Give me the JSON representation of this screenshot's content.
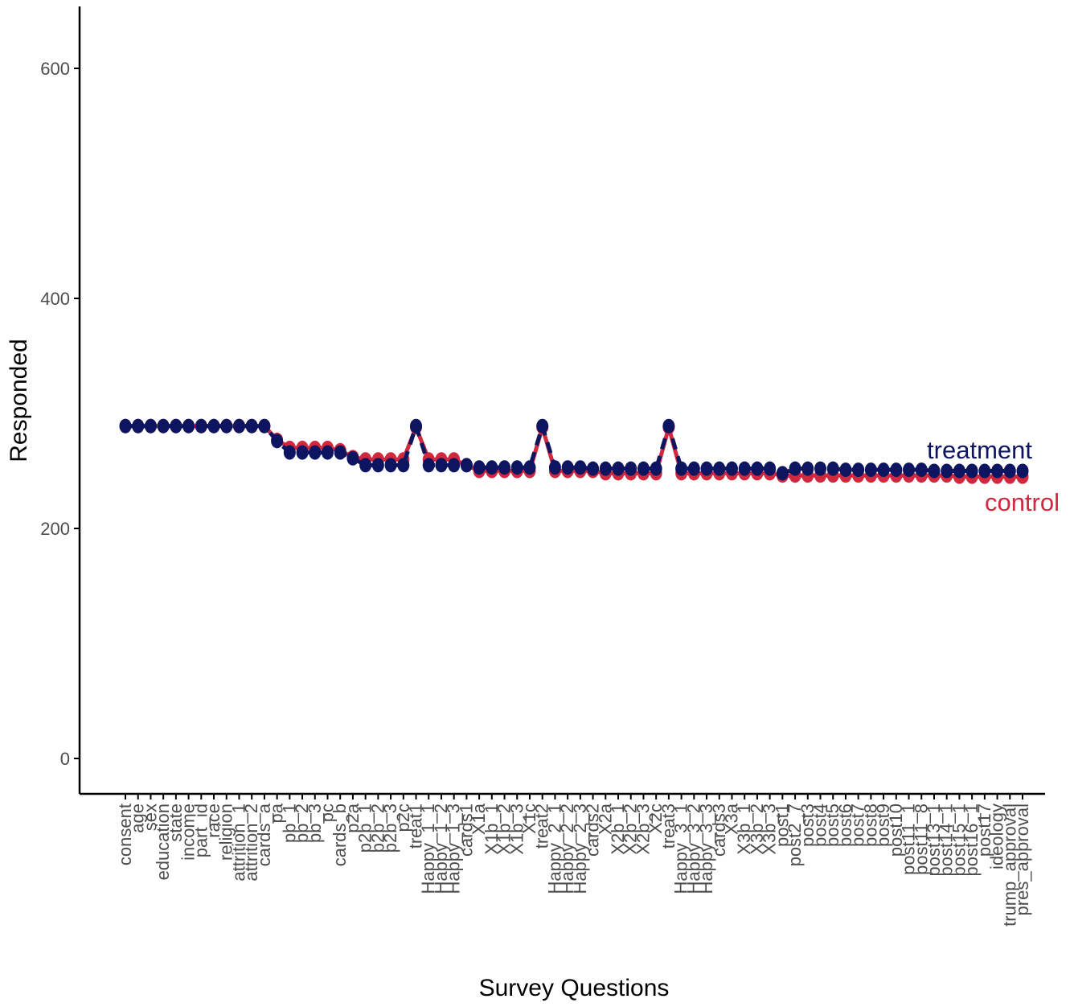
{
  "chart_data": {
    "type": "line",
    "xlabel": "Survey Questions",
    "ylabel": "Responded",
    "ylim": [
      -30,
      655
    ],
    "yticks": [
      0,
      200,
      400,
      600
    ],
    "grid": false,
    "categories": [
      "consent",
      "age",
      "sex",
      "education",
      "state",
      "income",
      "part_id",
      "race",
      "religion",
      "attrition_1",
      "attrition_2",
      "cards_a",
      "pa",
      "pb_1",
      "pb_2",
      "pb_3",
      "pc",
      "cards_b",
      "p2a",
      "p2b_1",
      "p2b_2",
      "p2b_3",
      "p2c",
      "treat1",
      "Happy_1_1",
      "Happy_1_2",
      "Happy_1_3",
      "cards1",
      "X1a",
      "X1b_1",
      "X1b_2",
      "X1b_3",
      "X1c",
      "treat2",
      "Happy_2_1",
      "Happy_2_2",
      "Happy_2_3",
      "cards2",
      "X2a",
      "X2b_1",
      "X2b_2",
      "X2b_3",
      "X2c",
      "treat3",
      "Happy_3_1",
      "Happy_3_2",
      "Happy_3_3",
      "cards3",
      "X3a",
      "X3b_1",
      "X3b_2",
      "X3b_3",
      "post1",
      "post2_7",
      "post3",
      "post4",
      "post5",
      "post6",
      "post7",
      "post8",
      "post9",
      "post10",
      "post11_1",
      "post11_8",
      "post13_1",
      "post14_1",
      "post15_1",
      "post16_1",
      "post17",
      "ideology",
      "trump_approval",
      "pres_approval"
    ],
    "series": [
      {
        "name": "control",
        "color": "#d0283e",
        "values": [
          289,
          289,
          289,
          289,
          289,
          289,
          289,
          289,
          289,
          289,
          289,
          289,
          277,
          270,
          270,
          270,
          270,
          268,
          262,
          260,
          260,
          260,
          260,
          288,
          260,
          260,
          260,
          255,
          250,
          250,
          250,
          250,
          250,
          288,
          250,
          250,
          250,
          250,
          248,
          248,
          248,
          248,
          248,
          288,
          248,
          248,
          248,
          248,
          248,
          248,
          248,
          248,
          246,
          246,
          246,
          246,
          246,
          246,
          246,
          246,
          246,
          246,
          246,
          246,
          246,
          246,
          245,
          245,
          245,
          245,
          245,
          245
        ]
      },
      {
        "name": "treatment",
        "color": "#0d1560",
        "values": [
          289,
          289,
          289,
          289,
          289,
          289,
          289,
          289,
          289,
          289,
          289,
          289,
          276,
          266,
          266,
          266,
          266,
          266,
          261,
          255,
          255,
          255,
          255,
          289,
          255,
          255,
          255,
          255,
          253,
          253,
          253,
          253,
          253,
          289,
          253,
          253,
          253,
          252,
          252,
          252,
          252,
          252,
          252,
          289,
          252,
          252,
          252,
          252,
          252,
          252,
          252,
          252,
          248,
          252,
          252,
          252,
          252,
          251,
          251,
          251,
          251,
          251,
          251,
          251,
          250,
          250,
          250,
          250,
          250,
          250,
          250,
          250
        ]
      }
    ]
  }
}
